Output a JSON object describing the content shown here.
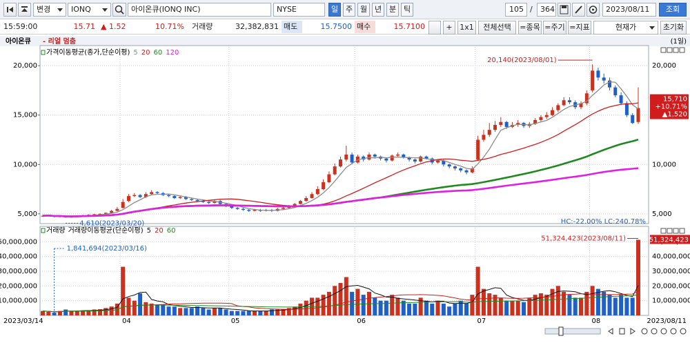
{
  "toolbar": {
    "change": "변경",
    "symbol": "IONQ",
    "name": "아이온큐(IONQ INC)",
    "exchange": "NYSE",
    "periods": [
      "일",
      "주",
      "월",
      "년",
      "분",
      "틱"
    ],
    "count": "105",
    "separator": "/",
    "total": "364",
    "date": "2023/08/11",
    "query": "조회"
  },
  "quote": {
    "time": "15:59:00",
    "price": "15.71",
    "change": "▲ 1.52",
    "change_pct": "10.71%",
    "volume_label": "거래량",
    "volume": "32,382,831",
    "ask_label": "매도",
    "ask": "15.7500",
    "bid_label": "매수",
    "bid": "15.7100",
    "plus": "+",
    "layout": "1x1",
    "select_all": "전체선택",
    "item": "=종목",
    "period": "=주기",
    "indicator": "=지표",
    "price_type": "현재가",
    "reset": "초기화"
  },
  "chart_data": {
    "type": "candlestick",
    "title": "아이온큐",
    "status": "- 리얼 멈춤",
    "interval": "(1일)",
    "ma_label": "가격이동평균(종가,단순이평)",
    "moving_averages": [
      {
        "period": 5,
        "color": "#8c8c8c"
      },
      {
        "period": 20,
        "color": "#d01c1c"
      },
      {
        "period": 60,
        "color": "#1e8a1e"
      },
      {
        "period": 120,
        "color": "#e020e0"
      }
    ],
    "up_color": "#c8321e",
    "down_color": "#1f5fc8",
    "grid": true,
    "categories": [
      "2023/03/14",
      null,
      null,
      null,
      null,
      null,
      null,
      null,
      null,
      null,
      null,
      null,
      null,
      null,
      "04",
      null,
      null,
      null,
      null,
      null,
      null,
      null,
      null,
      null,
      null,
      null,
      null,
      null,
      null,
      null,
      null,
      null,
      null,
      "05",
      null,
      null,
      null,
      null,
      null,
      null,
      null,
      null,
      null,
      null,
      null,
      null,
      null,
      null,
      null,
      null,
      null,
      null,
      null,
      null,
      null,
      "06",
      null,
      null,
      null,
      null,
      null,
      null,
      null,
      null,
      null,
      null,
      null,
      null,
      null,
      null,
      null,
      null,
      null,
      null,
      null,
      null,
      "07",
      null,
      null,
      null,
      null,
      null,
      null,
      null,
      null,
      null,
      null,
      null,
      null,
      null,
      null,
      null,
      null,
      null,
      null,
      null,
      "08",
      null,
      null,
      null,
      null,
      null,
      null,
      null,
      "2023/08/11"
    ],
    "open": [
      4750,
      4800,
      4850,
      4700,
      4750,
      4650,
      4700,
      4800,
      4850,
      4900,
      4950,
      5000,
      5100,
      5300,
      5600,
      6300,
      6800,
      6900,
      6700,
      7000,
      7200,
      7100,
      6900,
      6800,
      6600,
      6700,
      6500,
      6400,
      6300,
      6200,
      6100,
      6300,
      6000,
      5800,
      5600,
      5500,
      5400,
      5300,
      5400,
      5300,
      5400,
      5300,
      5500,
      5600,
      5800,
      6000,
      6300,
      6600,
      7000,
      7500,
      8200,
      9000,
      9800,
      10500,
      11000,
      10200,
      10800,
      10500,
      11000,
      10800,
      10600,
      10400,
      10900,
      11000,
      10700,
      10500,
      10300,
      10800,
      10600,
      10200,
      10400,
      10000,
      9800,
      9600,
      9400,
      9200,
      10500,
      12500,
      13000,
      13500,
      14000,
      14300,
      13800,
      14000,
      14200,
      13900,
      14100,
      14500,
      14800,
      15000,
      15500,
      16000,
      16500,
      16300,
      15800,
      16200,
      17500,
      19500,
      18800,
      18500,
      17800,
      17000,
      16200,
      15000,
      14300
    ],
    "high": [
      4900,
      4900,
      4880,
      4800,
      4780,
      4750,
      4850,
      4900,
      4950,
      5000,
      5050,
      5150,
      5400,
      5700,
      6500,
      7000,
      7100,
      7000,
      7200,
      7400,
      7300,
      7200,
      7000,
      6900,
      6800,
      6800,
      6600,
      6500,
      6400,
      6300,
      6400,
      6400,
      6100,
      5900,
      5700,
      5600,
      5500,
      5500,
      5500,
      5500,
      5500,
      5600,
      5700,
      5900,
      6100,
      6400,
      6800,
      7200,
      7800,
      8500,
      9300,
      10100,
      10800,
      11900,
      11200,
      11000,
      10900,
      11200,
      11100,
      10900,
      10700,
      11000,
      11200,
      11100,
      10800,
      10600,
      10900,
      10900,
      10700,
      10500,
      10500,
      10100,
      9900,
      9700,
      9500,
      9800,
      12900,
      13500,
      14200,
      14400,
      14800,
      14400,
      14300,
      14500,
      14300,
      14300,
      14700,
      15000,
      15300,
      15800,
      16200,
      16800,
      16800,
      16500,
      16400,
      17500,
      20140,
      19800,
      19200,
      18800,
      18000,
      17300,
      16400,
      15200,
      17800
    ],
    "low": [
      4700,
      4750,
      4650,
      4650,
      4610,
      4620,
      4680,
      4750,
      4800,
      4850,
      4900,
      4950,
      5050,
      5250,
      5550,
      6200,
      6700,
      6600,
      6600,
      6900,
      7000,
      6800,
      6700,
      6500,
      6500,
      6400,
      6300,
      6200,
      6100,
      6000,
      6050,
      5900,
      5700,
      5500,
      5400,
      5300,
      5200,
      5250,
      5200,
      5250,
      5200,
      5250,
      5450,
      5550,
      5750,
      5950,
      6250,
      6550,
      6900,
      7400,
      8100,
      8900,
      9700,
      10300,
      10000,
      10100,
      10300,
      10400,
      10600,
      10400,
      10200,
      10300,
      10800,
      10600,
      10300,
      10100,
      10200,
      10500,
      10000,
      10100,
      9800,
      9600,
      9400,
      9200,
      9000,
      9100,
      10400,
      12300,
      12800,
      13300,
      13800,
      13600,
      13700,
      13800,
      13700,
      13700,
      14000,
      14300,
      14600,
      14900,
      15300,
      15900,
      16100,
      15600,
      15600,
      16000,
      17300,
      18500,
      18200,
      17500,
      16800,
      16000,
      14800,
      14100,
      14100
    ],
    "close": [
      4800,
      4850,
      4700,
      4750,
      4650,
      4700,
      4800,
      4850,
      4900,
      4950,
      5000,
      5100,
      5300,
      5500,
      6200,
      6800,
      6900,
      6700,
      7000,
      7200,
      7100,
      6900,
      6800,
      6600,
      6700,
      6500,
      6400,
      6300,
      6200,
      6100,
      6300,
      6000,
      5800,
      5600,
      5500,
      5400,
      5300,
      5400,
      5300,
      5400,
      5300,
      5500,
      5600,
      5800,
      6000,
      6300,
      6600,
      7000,
      7500,
      8200,
      9000,
      9800,
      10500,
      11000,
      10200,
      10800,
      10500,
      11000,
      10800,
      10600,
      10400,
      10900,
      11000,
      10700,
      10500,
      10300,
      10800,
      10600,
      10200,
      10400,
      10000,
      9800,
      9600,
      9400,
      9200,
      9600,
      12500,
      13000,
      13500,
      14000,
      14300,
      13800,
      14000,
      14200,
      13900,
      14100,
      14500,
      14800,
      15000,
      15500,
      16000,
      16500,
      16300,
      15800,
      16200,
      17200,
      19500,
      18800,
      18500,
      17800,
      17000,
      16200,
      15000,
      14190,
      15710
    ],
    "ylim": [
      4150,
      21900
    ],
    "yticks": [
      {
        "value": 5000,
        "label": "5,000"
      },
      {
        "value": 10000,
        "label": "10,000"
      },
      {
        "value": 15000,
        "label": "15,000"
      },
      {
        "value": 20000,
        "label": "20,000"
      }
    ],
    "annotations": {
      "high": "20,140(2023/08/01)",
      "low": "4,610(2023/03/20)",
      "range": "HC:-22.00%  LC:240.78%"
    },
    "last_badge": [
      "15,710",
      "+10.71%",
      "▲1,520"
    ],
    "volume": {
      "label": "거래량",
      "ma_label": "거래량이동평균(단순이평)",
      "moving_averages": [
        {
          "period": 5,
          "color": "#111111"
        },
        {
          "period": 20,
          "color": "#d01c1c"
        },
        {
          "period": 60,
          "color": "#1e8a1e"
        }
      ],
      "values": [
        3000000,
        2500000,
        1841694,
        3000000,
        4000000,
        3000000,
        3200000,
        3000000,
        3100000,
        4000000,
        4200000,
        5000000,
        6000000,
        8000000,
        33000000,
        12000000,
        10000000,
        15000000,
        9000000,
        8000000,
        7000000,
        7000000,
        6000000,
        6000000,
        5000000,
        5000000,
        5000000,
        6000000,
        5000000,
        4000000,
        5000000,
        5000000,
        4000000,
        3000000,
        3000000,
        3000000,
        3000000,
        3000000,
        3000000,
        3000000,
        4000000,
        4000000,
        4000000,
        5000000,
        6000000,
        8000000,
        10000000,
        12000000,
        12000000,
        14000000,
        16000000,
        20000000,
        22000000,
        26000000,
        16000000,
        18000000,
        14000000,
        16000000,
        12000000,
        10000000,
        10000000,
        14000000,
        12000000,
        10000000,
        8000000,
        8000000,
        12000000,
        10000000,
        8000000,
        10000000,
        8000000,
        6000000,
        8000000,
        10000000,
        8000000,
        14000000,
        33000000,
        18000000,
        15000000,
        14000000,
        12000000,
        10000000,
        10000000,
        10000000,
        9000000,
        12000000,
        14000000,
        15000000,
        14000000,
        18000000,
        20000000,
        16000000,
        14000000,
        12000000,
        12000000,
        16000000,
        20000000,
        18000000,
        16000000,
        14000000,
        12000000,
        14000000,
        12000000,
        12000000,
        51324423
      ],
      "ylim": [
        0,
        59500000
      ],
      "yticks": [
        {
          "value": 10000000,
          "label": "10,000,000"
        },
        {
          "value": 20000000,
          "label": "20,000,000"
        },
        {
          "value": 30000000,
          "label": "30,000,000"
        },
        {
          "value": 40000000,
          "label": "40,000,000"
        },
        {
          "value": 50000000,
          "label": "50,000,000"
        }
      ],
      "annotations": {
        "low": "1,841,694(2023/03/16)",
        "high": "51,324,423(2023/08/11)"
      },
      "last_badge": "51,324,423"
    }
  }
}
